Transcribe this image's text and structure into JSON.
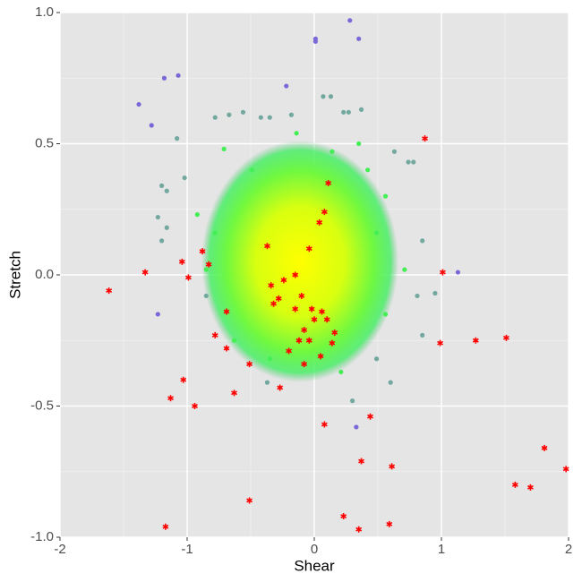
{
  "chart_data": {
    "type": "scatter",
    "x_label": "Shear",
    "y_label": "Stretch",
    "xlim": [
      -2,
      2
    ],
    "ylim": [
      -1,
      1
    ],
    "xticks": [
      -2,
      -1,
      0,
      1,
      2
    ],
    "yticks": [
      {
        "value": -1,
        "label": "-1.0"
      },
      -0.5,
      {
        "value": 0,
        "label": "0.0"
      },
      0.5,
      {
        "value": 1,
        "label": "1.0"
      }
    ],
    "grid": true,
    "series": [
      {
        "marker": "circle",
        "color": "#73a89f",
        "x": [
          -0.42,
          -0.35,
          -0.18,
          0.07,
          0.13,
          0.23,
          0.27,
          0.37,
          0.63,
          0.74,
          0.78,
          -1.08,
          -1.2,
          -1.16,
          -1.02,
          0.85,
          -1.2,
          -1.16,
          0.81,
          0.95,
          0.85,
          0.6,
          0.3,
          -0.37,
          -0.78,
          -0.67,
          -0.56,
          -1.23,
          0.49,
          -0.85
        ],
        "values": [
          0.6,
          0.6,
          0.61,
          0.68,
          0.68,
          0.62,
          0.62,
          0.63,
          0.47,
          0.43,
          0.43,
          0.52,
          0.34,
          0.32,
          0.37,
          0.13,
          0.13,
          0.18,
          -0.08,
          -0.07,
          -0.23,
          -0.41,
          -0.48,
          -0.41,
          0.6,
          0.61,
          0.62,
          0.22,
          -0.32,
          -0.08
        ]
      },
      {
        "marker": "circle",
        "color": "#44ee55",
        "x": [
          -0.71,
          -0.14,
          0.35,
          0.56,
          0.56,
          0.21,
          -0.35,
          -0.78,
          -0.85,
          -0.49,
          0.42,
          -0.63,
          0.14,
          0.71,
          -0.92,
          0.49
        ],
        "values": [
          0.48,
          0.54,
          0.5,
          0.3,
          -0.15,
          -0.37,
          -0.32,
          0.16,
          0.02,
          0.4,
          0.4,
          -0.25,
          0.47,
          0.02,
          0.23,
          0.16
        ]
      },
      {
        "marker": "circle",
        "color": "#7b68d8",
        "x": [
          0.28,
          0.01,
          0.01,
          0.35,
          -1.18,
          -1.07,
          -1.38,
          -1.28,
          -0.22,
          0.33,
          1.13,
          -1.23
        ],
        "values": [
          0.97,
          0.9,
          0.89,
          0.9,
          0.75,
          0.76,
          0.65,
          0.57,
          0.72,
          -0.58,
          0.01,
          -0.15
        ]
      },
      {
        "marker": "asterisk",
        "color": "#ff0000",
        "x": [
          -1.615,
          -1.33,
          -1.17,
          -1.13,
          -1.03,
          -0.94,
          -1.04,
          -0.99,
          -0.88,
          -0.83,
          -0.78,
          -0.69,
          -0.69,
          -0.63,
          -0.51,
          -0.51,
          -0.37,
          -0.34,
          -0.32,
          -0.28,
          -0.24,
          -0.27,
          -0.2,
          -0.15,
          -0.15,
          -0.12,
          -0.1,
          -0.08,
          -0.08,
          -0.04,
          -0.04,
          -0.02,
          0.0,
          0.04,
          0.05,
          0.06,
          0.08,
          0.1,
          0.11,
          0.16,
          0.14,
          0.08,
          0.23,
          0.35,
          0.37,
          0.44,
          0.61,
          0.59,
          0.87,
          1.01,
          0.99,
          1.27,
          1.51,
          1.58,
          1.7,
          1.81,
          1.98
        ],
        "values": [
          -0.06,
          0.01,
          -0.96,
          -0.47,
          -0.4,
          -0.5,
          0.05,
          -0.01,
          0.09,
          0.04,
          -0.23,
          -0.14,
          -0.28,
          -0.45,
          -0.34,
          -0.86,
          0.11,
          -0.04,
          -0.11,
          -0.09,
          -0.02,
          -0.43,
          -0.29,
          0.0,
          -0.13,
          -0.25,
          -0.08,
          -0.21,
          -0.34,
          0.1,
          -0.25,
          -0.13,
          -0.17,
          0.2,
          -0.31,
          -0.14,
          0.24,
          -0.17,
          0.35,
          -0.22,
          -0.26,
          -0.57,
          -0.92,
          -0.97,
          -0.71,
          -0.54,
          -0.73,
          -0.95,
          0.52,
          0.01,
          -0.26,
          -0.25,
          -0.24,
          -0.8,
          -0.81,
          -0.66,
          -0.74
        ]
      }
    ]
  }
}
